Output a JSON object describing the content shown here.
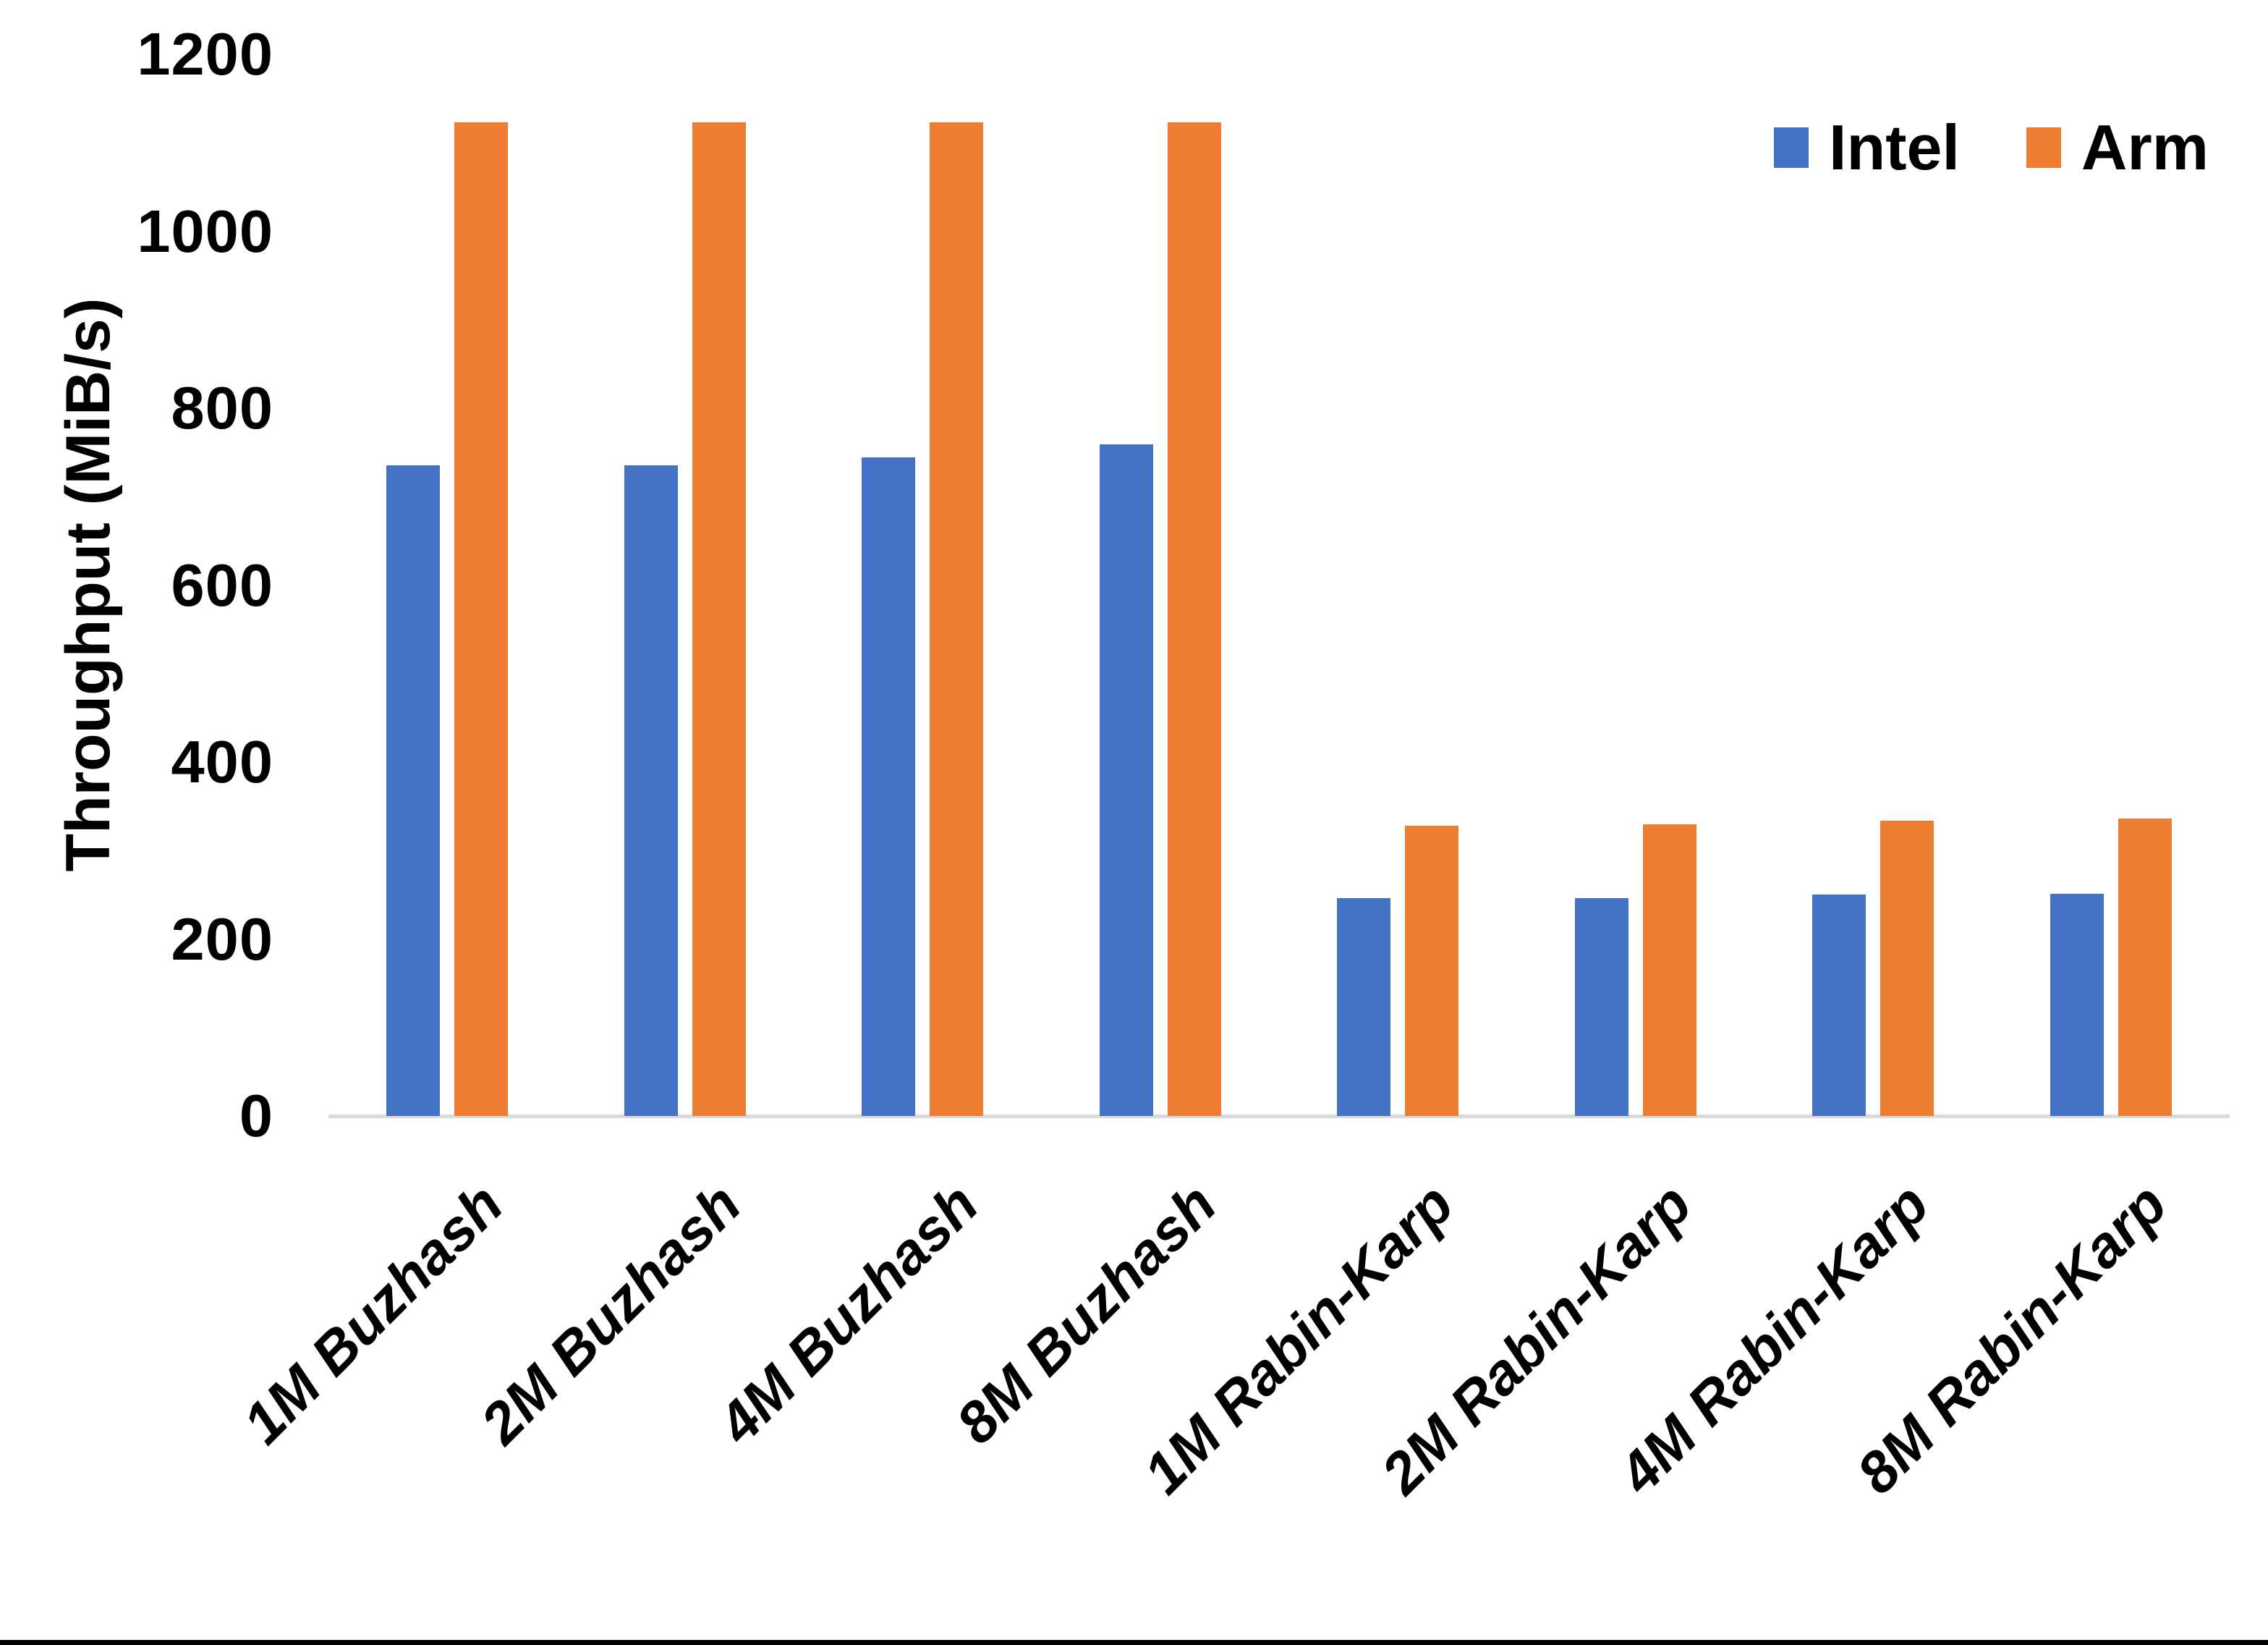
{
  "chart_data": {
    "type": "bar",
    "title": "",
    "categories": [
      "1M Buzhash",
      "2M Buzhash",
      "4M Buzhash",
      "8M Buzhash",
      "1M Rabin-Karp",
      "2M Rabin-Karp",
      "4M Rabin-Karp",
      "8M Rabin-Karp"
    ],
    "series": [
      {
        "name": "Intel",
        "color": "#4472C4",
        "values": [
          735,
          735,
          744,
          759,
          246,
          246,
          250,
          251
        ]
      },
      {
        "name": "Arm",
        "color": "#ED7D31",
        "values": [
          1123,
          1123,
          1123,
          1123,
          328,
          330,
          334,
          336
        ]
      }
    ],
    "xlabel": "",
    "ylabel": "Throughput (MiB/s)",
    "ylim": [
      0,
      1200
    ],
    "yticks": [
      0,
      200,
      400,
      600,
      800,
      1000,
      1200
    ],
    "legend_position": "top-right",
    "grid": false,
    "axis_line_color": "#D9D9D9",
    "text_color": "#000000",
    "background_color": "#ffffff",
    "border_bottom_color": "#000000"
  }
}
